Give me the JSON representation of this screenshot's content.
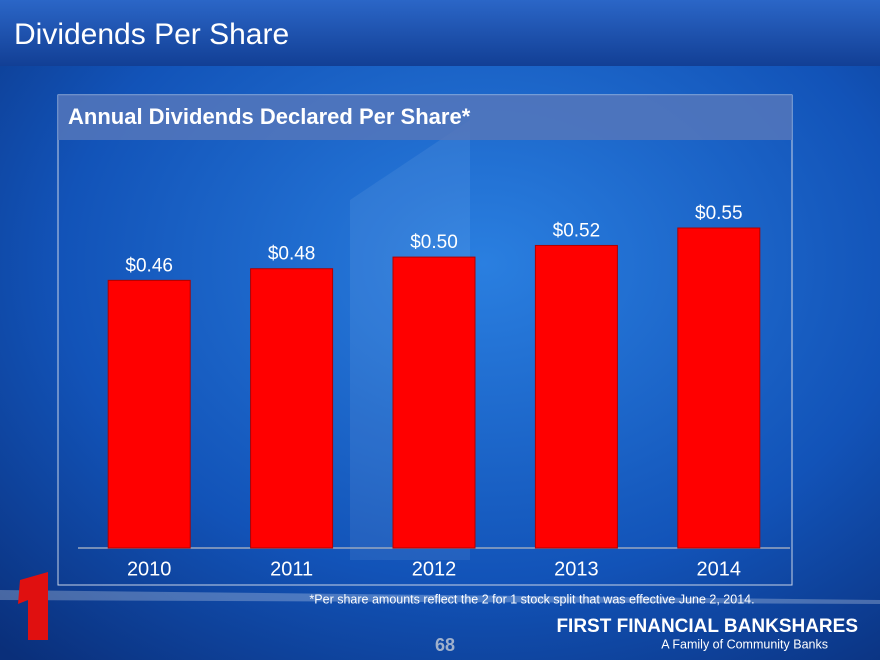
{
  "slide": {
    "title": "Dividends Per Share",
    "footnote": "*Per share amounts reflect the 2 for 1 stock split that was effective June 2, 2014.",
    "page_number": 68,
    "logo": "FIRST FINANCIAL BANKSHARES",
    "tagline": "A Family of Community Banks"
  },
  "chart_data": {
    "type": "bar",
    "title": "Annual Dividends Declared Per Share*",
    "categories": [
      "2010",
      "2011",
      "2012",
      "2013",
      "2014"
    ],
    "values": [
      0.46,
      0.48,
      0.5,
      0.52,
      0.55
    ],
    "value_labels": [
      "$0.46",
      "$0.48",
      "$0.50",
      "$0.52",
      "$0.55"
    ],
    "color": "#ff0000"
  }
}
